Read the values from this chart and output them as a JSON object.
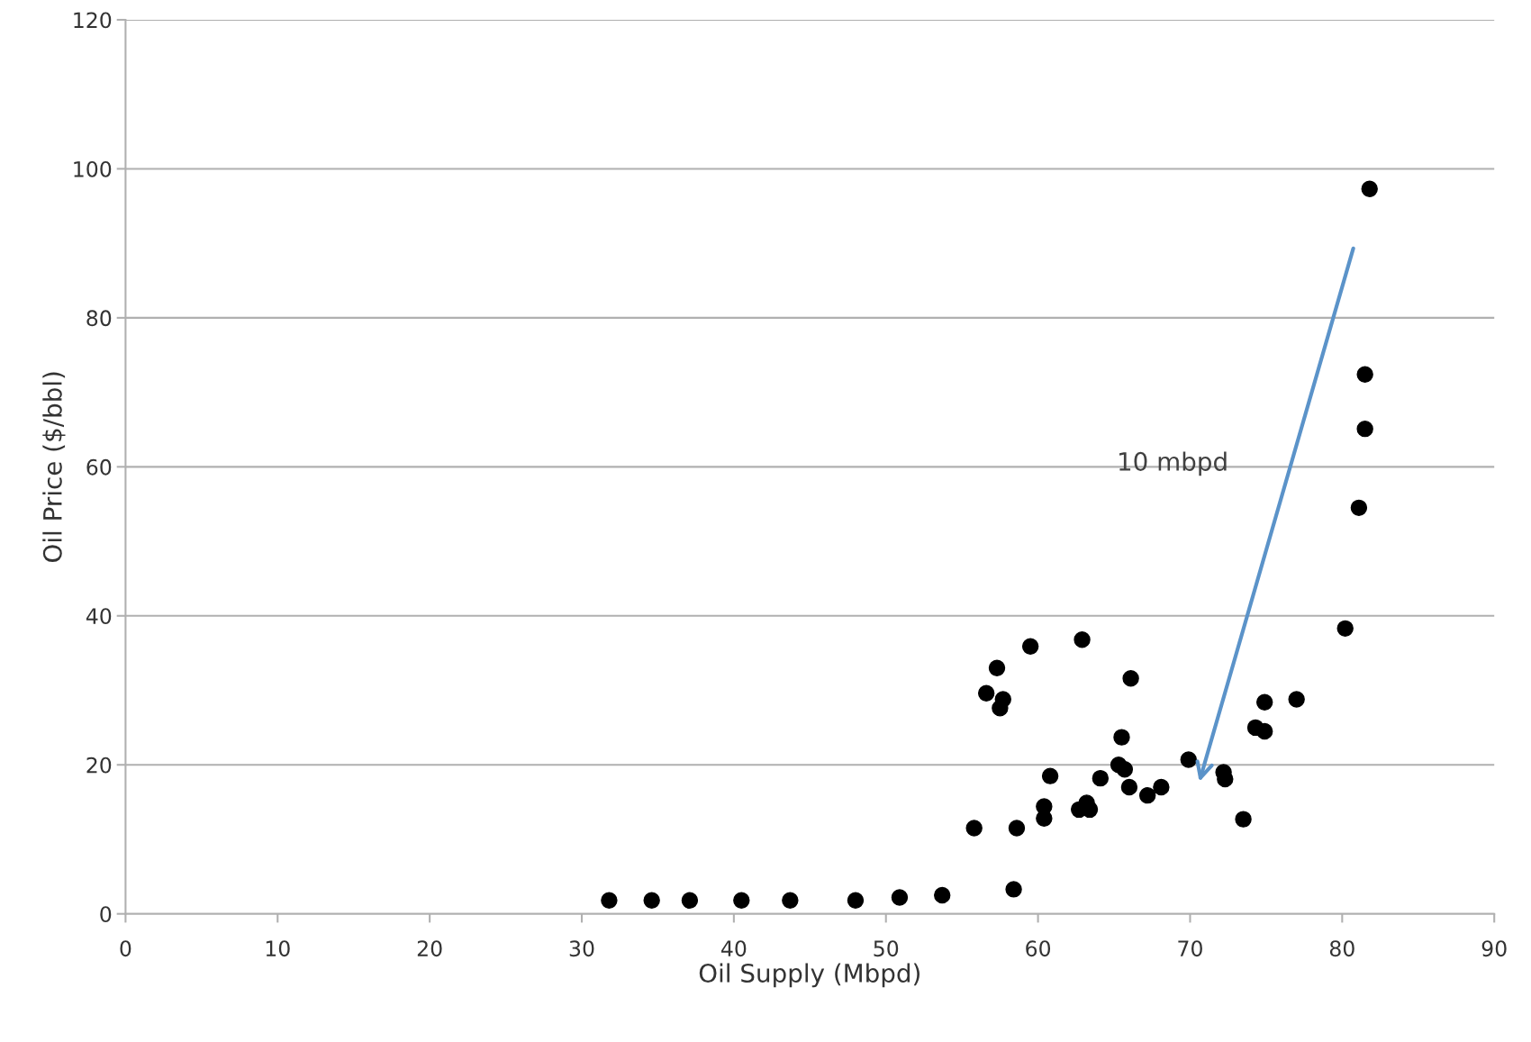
{
  "chart_data": {
    "type": "scatter",
    "xlabel": "Oil Supply (Mbpd)",
    "ylabel": "Oil Price ($/bbl)",
    "x": [
      31.8,
      34.6,
      37.1,
      40.5,
      43.7,
      48.0,
      50.9,
      53.7,
      55.8,
      56.6,
      57.3,
      57.7,
      57.5,
      58.4,
      58.6,
      59.5,
      60.4,
      60.4,
      60.8,
      62.7,
      62.9,
      63.2,
      63.4,
      64.1,
      65.3,
      65.5,
      65.7,
      66.0,
      66.1,
      67.2,
      68.1,
      69.9,
      72.2,
      72.3,
      73.5,
      74.3,
      74.9,
      74.9,
      77.0,
      80.2,
      81.1,
      81.5,
      81.5,
      81.8
    ],
    "series": [
      {
        "color": "#000000",
        "values": [
          1.8,
          1.8,
          1.8,
          1.8,
          1.8,
          1.8,
          2.2,
          2.5,
          11.5,
          29.6,
          33.0,
          28.8,
          27.6,
          3.3,
          11.5,
          35.9,
          14.4,
          12.8,
          18.5,
          14.0,
          36.8,
          14.9,
          14.0,
          18.2,
          20.0,
          23.7,
          19.4,
          17.0,
          31.6,
          15.9,
          17.0,
          20.7,
          19.0,
          18.1,
          12.7,
          25.0,
          24.5,
          28.4,
          28.8,
          38.3,
          54.5,
          65.1,
          72.4,
          97.3
        ]
      }
    ],
    "xlim": [
      0,
      90
    ],
    "xticks": [
      0,
      10,
      20,
      30,
      40,
      50,
      60,
      70,
      80,
      90
    ],
    "ylim": [
      0,
      120
    ],
    "yticks": [
      0,
      20,
      40,
      60,
      80,
      100,
      120
    ],
    "grid": "y",
    "marker": "circle",
    "legend": false,
    "annotations": [
      "10 mbpd"
    ]
  }
}
